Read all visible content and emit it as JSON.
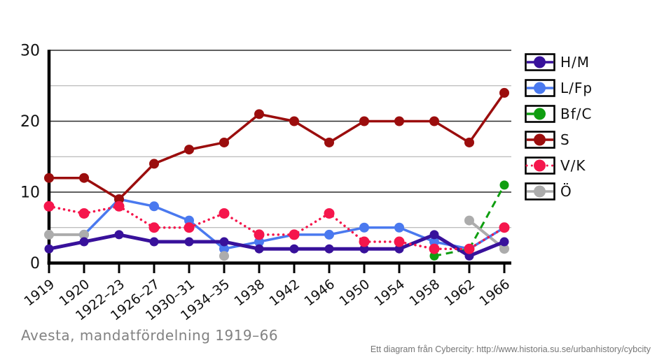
{
  "chart_data": {
    "type": "line",
    "title": "Avesta, mandatfördelning 1919–66",
    "attribution": "Ett diagram från Cybercity: http://www.historia.su.se/urbanhistory/cybcity",
    "categories": [
      "1919",
      "1920",
      "1922–23",
      "1926–27",
      "1930–31",
      "1934–35",
      "1938",
      "1942",
      "1946",
      "1950",
      "1954",
      "1958",
      "1962",
      "1966"
    ],
    "series": [
      {
        "name": "H/M",
        "color": "#38119b",
        "style": "solid",
        "line_width": 5,
        "marker_radius": 6.5,
        "values": [
          2,
          3,
          4,
          3,
          3,
          3,
          2,
          2,
          2,
          2,
          2,
          4,
          1,
          3
        ]
      },
      {
        "name": "L/Fp",
        "color": "#4a79ef",
        "style": "solid",
        "line_width": 3.5,
        "marker_radius": 7,
        "values": [
          null,
          4,
          9,
          8,
          6,
          2,
          3,
          4,
          4,
          5,
          5,
          3,
          2,
          5
        ]
      },
      {
        "name": "Bf/C",
        "color": "#0f9e10",
        "style": "dashed",
        "line_width": 3,
        "marker_radius": 6.5,
        "values": [
          null,
          null,
          null,
          null,
          null,
          null,
          null,
          null,
          null,
          null,
          null,
          1,
          2,
          11
        ]
      },
      {
        "name": "S",
        "color": "#9b0d0d",
        "style": "solid",
        "line_width": 3.5,
        "marker_radius": 7,
        "values": [
          12,
          12,
          9,
          14,
          16,
          17,
          21,
          20,
          17,
          20,
          20,
          20,
          17,
          24
        ]
      },
      {
        "name": "V/K",
        "color": "#f5164c",
        "style": "dotted",
        "line_width": 3.5,
        "marker_radius": 7.5,
        "values": [
          8,
          7,
          8,
          5,
          5,
          7,
          4,
          4,
          7,
          3,
          3,
          2,
          2,
          5
        ]
      },
      {
        "name": "Ö",
        "color": "#acacac",
        "style": "solid",
        "line_width": 4,
        "marker_radius": 7,
        "values": [
          4,
          4,
          null,
          null,
          null,
          1,
          null,
          null,
          null,
          null,
          null,
          null,
          6,
          2
        ]
      }
    ],
    "ylim": [
      0,
      30
    ],
    "yticks": [
      0,
      10,
      20,
      30
    ],
    "minor_yticks": [
      5,
      15,
      25
    ],
    "grid": true,
    "legend_position": "right"
  }
}
